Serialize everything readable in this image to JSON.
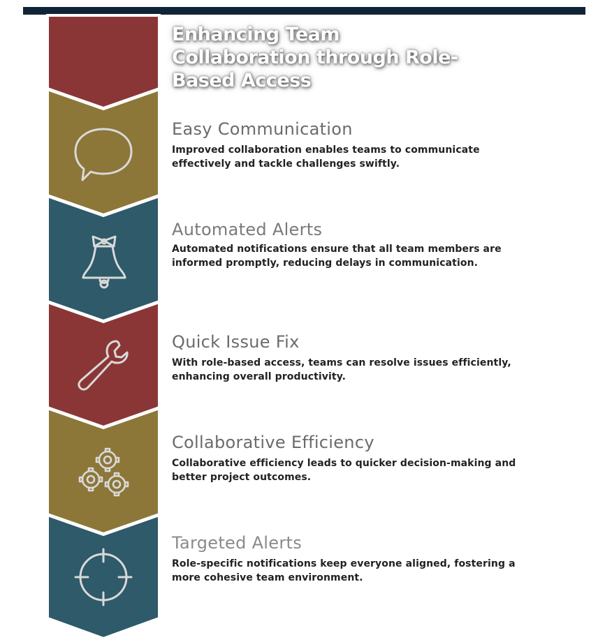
{
  "title": "Enhancing Team Collaboration through Role-Based Access",
  "colors": {
    "red": "#8b3636",
    "gold": "#8c7739",
    "teal": "#2e5a69",
    "topbar": "#0f2437",
    "icon_stroke": "#d9d9d9"
  },
  "items": [
    {
      "heading": "Easy Communication",
      "heading_color": "#6b6b6b",
      "description": "Improved collaboration enables teams to communicate effectively and tackle challenges swiftly.",
      "icon": "speech-bubble-icon"
    },
    {
      "heading": "Automated Alerts",
      "heading_color": "#7a7a7a",
      "description": "Automated notifications ensure that all team members are informed promptly, reducing delays in communication.",
      "icon": "bell-icon"
    },
    {
      "heading": "Quick Issue Fix",
      "heading_color": "#6b6b6b",
      "description": "With role-based access, teams can resolve issues efficiently, enhancing overall productivity.",
      "icon": "wrench-icon"
    },
    {
      "heading": "Collaborative Efficiency",
      "heading_color": "#6b6b6b",
      "description": "Collaborative efficiency leads to quicker decision-making and better project outcomes.",
      "icon": "gears-icon"
    },
    {
      "heading": "Targeted Alerts",
      "heading_color": "#8a8a8a",
      "description": "Role-specific notifications keep everyone aligned, fostering a more cohesive team environment.",
      "icon": "crosshair-icon"
    }
  ]
}
